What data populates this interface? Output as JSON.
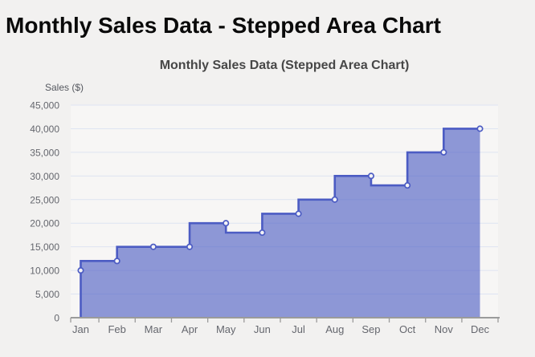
{
  "page": {
    "title": "Monthly Sales Data - Stepped Area Chart"
  },
  "chart": {
    "title": "Monthly Sales Data (Stepped Area Chart)",
    "y_axis_title": "Sales ($)"
  },
  "chart_data": {
    "type": "area",
    "stepped": "before",
    "title": "Monthly Sales Data (Stepped Area Chart)",
    "xlabel": "",
    "ylabel": "Sales ($)",
    "categories": [
      "Jan",
      "Feb",
      "Mar",
      "Apr",
      "May",
      "Jun",
      "Jul",
      "Aug",
      "Sep",
      "Oct",
      "Nov",
      "Dec"
    ],
    "values": [
      10000,
      12000,
      15000,
      15000,
      20000,
      18000,
      22000,
      25000,
      30000,
      28000,
      35000,
      40000
    ],
    "ylim": [
      0,
      45000
    ],
    "y_tick_step": 5000,
    "y_ticks": [
      {
        "value": 0,
        "label": "0"
      },
      {
        "value": 5000,
        "label": "5,000"
      },
      {
        "value": 10000,
        "label": "10,000"
      },
      {
        "value": 15000,
        "label": "15,000"
      },
      {
        "value": 20000,
        "label": "20,000"
      },
      {
        "value": 25000,
        "label": "25,000"
      },
      {
        "value": 30000,
        "label": "30,000"
      },
      {
        "value": 35000,
        "label": "35,000"
      },
      {
        "value": 40000,
        "label": "40,000"
      },
      {
        "value": 45000,
        "label": "45,000"
      }
    ],
    "grid": true,
    "legend": false,
    "colors": {
      "line": "#4c5cc3",
      "fill": "#4c5cc3",
      "fill_opacity": 0.62,
      "point_fill": "#f2f2f6",
      "grid_line": "#dee4f2",
      "axis_line": "#9b9b9b",
      "tick_text": "#65676e",
      "plot_background": "#f7f6f5",
      "page_background": "#f2f1f0"
    }
  }
}
